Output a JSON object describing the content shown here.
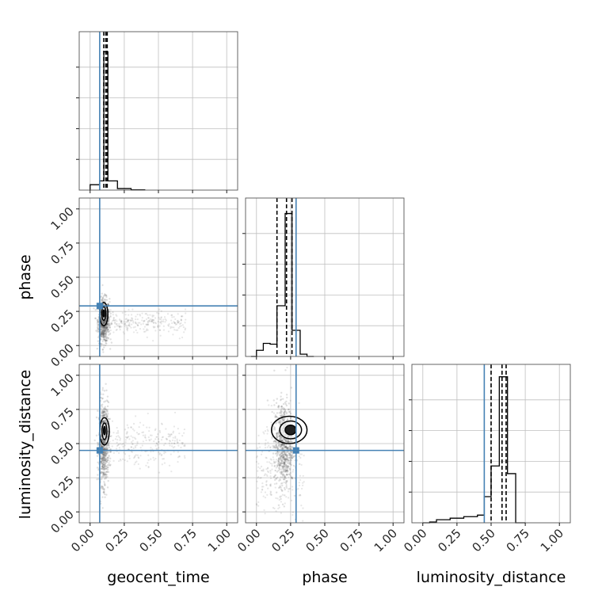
{
  "chart_data": {
    "type": "corner",
    "parameters": [
      "geocent_time",
      "phase",
      "luminosity_distance"
    ],
    "truths": {
      "geocent_time": 0.07,
      "phase": 0.29,
      "luminosity_distance": 0.45
    },
    "axis_range": [
      -0.08,
      1.08
    ],
    "tick_values": [
      0.0,
      0.25,
      0.5,
      0.75,
      1.0
    ],
    "tick_labels": [
      "0.00",
      "0.25",
      "0.50",
      "0.75",
      "1.00"
    ],
    "grid": true,
    "colors": {
      "truth": "#4682b4",
      "hist": "#000000",
      "points": "#555555",
      "grid": "#bfbfbf",
      "frame": "#555555"
    },
    "marginals": {
      "geocent_time": {
        "bins": [
          {
            "x0": -0.0,
            "x1": 0.07,
            "h": 0.035
          },
          {
            "x0": 0.07,
            "x1": 0.1,
            "h": 0.06
          },
          {
            "x0": 0.1,
            "x1": 0.13,
            "h": 0.9
          },
          {
            "x0": 0.13,
            "x1": 0.2,
            "h": 0.06
          },
          {
            "x0": 0.2,
            "x1": 0.3,
            "h": 0.01
          },
          {
            "x0": 0.3,
            "x1": 0.4,
            "h": 0.002
          }
        ],
        "quantiles": [
          0.1,
          0.115,
          0.125
        ]
      },
      "phase": {
        "bins": [
          {
            "x0": -0.04,
            "x1": 0.0,
            "h": 0.0
          },
          {
            "x0": 0.0,
            "x1": 0.05,
            "h": 0.04
          },
          {
            "x0": 0.05,
            "x1": 0.1,
            "h": 0.085
          },
          {
            "x0": 0.1,
            "x1": 0.15,
            "h": 0.08
          },
          {
            "x0": 0.15,
            "x1": 0.21,
            "h": 0.33
          },
          {
            "x0": 0.21,
            "x1": 0.26,
            "h": 0.93
          },
          {
            "x0": 0.26,
            "x1": 0.32,
            "h": 0.17
          },
          {
            "x0": 0.32,
            "x1": 0.37,
            "h": 0.015
          },
          {
            "x0": 0.37,
            "x1": 0.42,
            "h": 0.0
          }
        ],
        "quantiles": [
          0.15,
          0.22,
          0.26
        ]
      },
      "luminosity_distance": {
        "bins": [
          {
            "x0": 0.0,
            "x1": 0.05,
            "h": 0.0
          },
          {
            "x0": 0.05,
            "x1": 0.1,
            "h": 0.005
          },
          {
            "x0": 0.1,
            "x1": 0.2,
            "h": 0.02
          },
          {
            "x0": 0.2,
            "x1": 0.3,
            "h": 0.03
          },
          {
            "x0": 0.3,
            "x1": 0.4,
            "h": 0.04
          },
          {
            "x0": 0.4,
            "x1": 0.45,
            "h": 0.05
          },
          {
            "x0": 0.45,
            "x1": 0.5,
            "h": 0.17
          },
          {
            "x0": 0.5,
            "x1": 0.56,
            "h": 0.37
          },
          {
            "x0": 0.56,
            "x1": 0.62,
            "h": 0.95
          },
          {
            "x0": 0.62,
            "x1": 0.68,
            "h": 0.32
          },
          {
            "x0": 0.68,
            "x1": 0.75,
            "h": 0.0
          }
        ],
        "quantiles": [
          0.5,
          0.58,
          0.61
        ]
      }
    },
    "pairs": [
      {
        "x": "geocent_time",
        "y": "phase",
        "cloud_center": [
          0.1,
          0.18
        ],
        "cloud_spread": [
          0.06,
          0.08
        ],
        "tail": {
          "x_range": [
            0.12,
            0.7
          ],
          "y_center": 0.17,
          "y_spread": 0.04
        },
        "contours": [
          {
            "cx": 0.1,
            "cy": 0.23,
            "rx": 0.03,
            "ry": 0.085
          },
          {
            "cx": 0.1,
            "cy": 0.235,
            "rx": 0.015,
            "ry": 0.05
          },
          {
            "cx": 0.1,
            "cy": 0.235,
            "rx": 0.006,
            "ry": 0.025
          }
        ]
      },
      {
        "x": "geocent_time",
        "y": "luminosity_distance",
        "cloud_center": [
          0.1,
          0.5
        ],
        "cloud_spread": [
          0.05,
          0.15
        ],
        "tail": {
          "x_range": [
            0.12,
            0.7
          ],
          "y_center": 0.5,
          "y_spread": 0.08
        },
        "contours": [
          {
            "cx": 0.105,
            "cy": 0.59,
            "rx": 0.035,
            "ry": 0.1
          },
          {
            "cx": 0.105,
            "cy": 0.59,
            "rx": 0.018,
            "ry": 0.06
          },
          {
            "cx": 0.105,
            "cy": 0.595,
            "rx": 0.007,
            "ry": 0.03
          }
        ]
      },
      {
        "x": "phase",
        "y": "luminosity_distance",
        "cloud_center": [
          0.2,
          0.5
        ],
        "cloud_spread": [
          0.1,
          0.15
        ],
        "tail": {
          "x_range": [
            0.0,
            0.35
          ],
          "y_center": 0.3,
          "y_spread": 0.2
        },
        "contours": [
          {
            "cx": 0.24,
            "cy": 0.6,
            "rx": 0.13,
            "ry": 0.1
          },
          {
            "cx": 0.25,
            "cy": 0.6,
            "rx": 0.08,
            "ry": 0.065
          },
          {
            "cx": 0.25,
            "cy": 0.6,
            "rx": 0.04,
            "ry": 0.035
          }
        ]
      }
    ]
  }
}
